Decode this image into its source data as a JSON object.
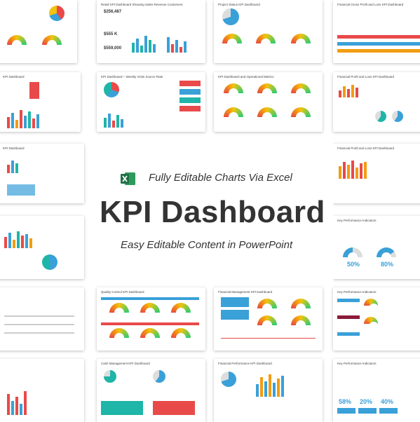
{
  "banner": {
    "tagline_top": "Fully Editable Charts Via Excel",
    "title": "KPI Dashboard",
    "tagline_bottom": "Easy Editable Content in PowerPoint"
  },
  "thumbnails": {
    "t1": "Retail KPI Dashboard Showing Sales Revenue Customers",
    "t2": "Project Status KPI Dashboard",
    "t3": "Financial Gross Profit and Loss KPI Dashboard",
    "t4": "KPI Dashboard",
    "t5": "KPI Dashboard – Weekly Visits Source Rate",
    "t6": "KPI Dashboard and Operational Metrics",
    "t7": "Financial Profit and Loss KPI Dashboard",
    "t8": "KPI Dashboard",
    "t9": "Financial Profit and Loss KPI Dashboard",
    "t10": "Key Performance Indicators",
    "t11": "Quality Control KPI Dashboard",
    "t12": "Financial Management KPI Dashboard",
    "t13": "Key Performance Indicators",
    "t14": "Cash Management KPI Dashboard",
    "t15": "Financial Performance KPI Dashboard",
    "t16": "Key Performance Indicators"
  },
  "values": {
    "v1": "$256,487",
    "v2": "$555 K",
    "v3": "$559,000",
    "p1": "50%",
    "p2": "80%",
    "p3": "58%",
    "p4": "20%",
    "p5": "40%"
  },
  "colors": {
    "red": "#e84a4a",
    "blue": "#3aa0d8",
    "teal": "#1fb5a8",
    "orange": "#f39c12",
    "yellow": "#f1c40f",
    "excel_green": "#1e7145"
  },
  "icons": {
    "excel": "excel-logo-icon"
  }
}
